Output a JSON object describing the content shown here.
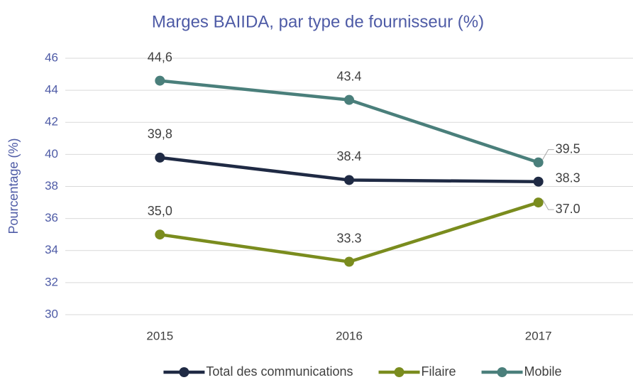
{
  "chart_data": {
    "type": "line",
    "title": "Marges BAIIDA, par type de fournisseur (%)",
    "y_label": "Pourcentage (%)",
    "categories": [
      "2015",
      "2016",
      "2017"
    ],
    "series": [
      {
        "name": "Total des communications",
        "color": "#1f2a44",
        "values": [
          39.8,
          38.4,
          38.3
        ],
        "value_labels": [
          "39,8",
          "38.4",
          "38.3"
        ]
      },
      {
        "name": "Filaire",
        "color": "#7a8c1e",
        "values": [
          35.0,
          33.3,
          37.0
        ],
        "value_labels": [
          "35,0",
          "33.3",
          "37.0"
        ]
      },
      {
        "name": "Mobile",
        "color": "#4a7f7b",
        "values": [
          44.6,
          43.4,
          39.5
        ],
        "value_labels": [
          "44,6",
          "43.4",
          "39.5"
        ]
      }
    ],
    "ylim": [
      30,
      46
    ],
    "yticks": [
      30,
      32,
      34,
      36,
      38,
      40,
      42,
      44,
      46
    ],
    "grid": true,
    "legend": "bottom"
  }
}
